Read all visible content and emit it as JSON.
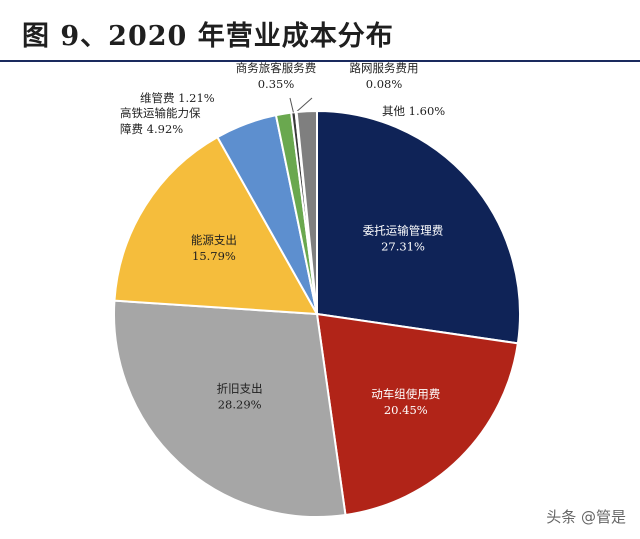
{
  "header": {
    "title": "图 9、2020 年营业成本分布"
  },
  "watermark": "头条 @管是",
  "chart_data": {
    "type": "pie",
    "title": "图 9、2020 年营业成本分布",
    "slices": [
      {
        "lines": [
          "委托运输管理费"
        ],
        "pct": "27.31%",
        "value": 27.31,
        "color": "#0f2357"
      },
      {
        "lines": [
          "动车组使用费"
        ],
        "pct": "20.45%",
        "value": 20.45,
        "color": "#b12418"
      },
      {
        "lines": [
          "折旧支出"
        ],
        "pct": "28.29%",
        "value": 28.29,
        "color": "#a6a6a6"
      },
      {
        "lines": [
          "能源支出"
        ],
        "pct": "15.79%",
        "value": 15.79,
        "color": "#f5bd3c"
      },
      {
        "lines": [
          "高铁运输能力保",
          "障费"
        ],
        "pct": "4.92%",
        "value": 4.92,
        "color": "#5d8fcf"
      },
      {
        "lines": [
          "维管费"
        ],
        "pct": "1.21%",
        "value": 1.21,
        "color": "#6aa84f"
      },
      {
        "lines": [
          "商务旅客服务费"
        ],
        "pct": "0.35%",
        "value": 0.35,
        "color": "#3a3a3a"
      },
      {
        "lines": [
          "路网服务费用"
        ],
        "pct": "0.08%",
        "value": 0.08,
        "color": "#1f3f7a"
      },
      {
        "lines": [
          "其他"
        ],
        "pct": "1.60%",
        "value": 1.6,
        "color": "#7f7f7f"
      }
    ]
  }
}
